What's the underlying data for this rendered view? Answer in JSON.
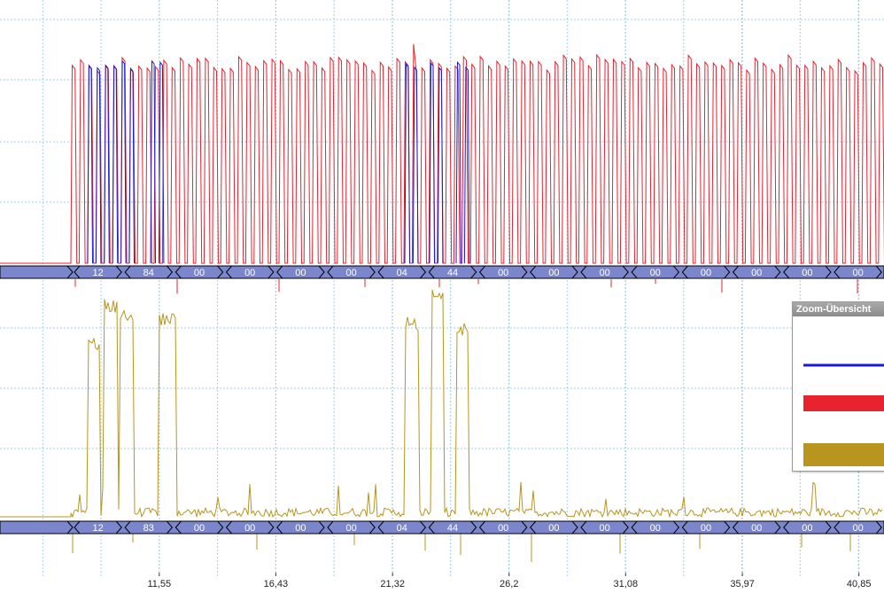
{
  "chart_data": {
    "type": "line",
    "x_tick_labels": [
      "11,55",
      "16,43",
      "21,32",
      "26,2",
      "31,08",
      "35,97",
      "40,85"
    ],
    "x_ticks": [
      11.55,
      16.43,
      21.32,
      26.2,
      31.08,
      35.97,
      40.85
    ],
    "xlim": [
      4.88,
      41.9
    ],
    "channels": [
      {
        "name": "",
        "series": [
          {
            "color": "#e8222e",
            "style": "dense-oscillation"
          },
          {
            "color": "#1a1ad6",
            "style": "bursts"
          }
        ],
        "decoded_bytes": [
          "12",
          "84",
          "00",
          "00",
          "00",
          "00",
          "04",
          "44",
          "00",
          "00",
          "00",
          "00",
          "00",
          "00",
          "00",
          "00",
          "00"
        ]
      },
      {
        "name": "",
        "series": [
          {
            "color": "#b8951e",
            "style": "bursts-with-noise"
          }
        ],
        "decoded_bytes": [
          "12",
          "83",
          "00",
          "00",
          "00",
          "00",
          "04",
          "44",
          "00",
          "00",
          "00",
          "00",
          "00",
          "00",
          "00",
          "00",
          "00"
        ]
      }
    ],
    "grid": true
  },
  "zoom_panel": {
    "title": "Zoom-Übersicht",
    "traces": [
      {
        "color": "#1a1ad6"
      },
      {
        "color": "#e8222e"
      },
      {
        "color": "#b8951e"
      }
    ]
  }
}
